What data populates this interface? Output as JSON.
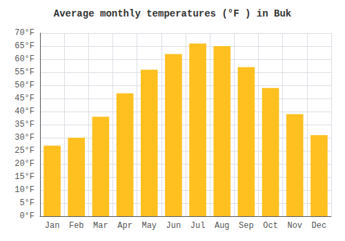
{
  "chart_data": {
    "type": "bar",
    "title": "Average monthly temperatures (°F ) in Buk",
    "categories": [
      "Jan",
      "Feb",
      "Mar",
      "Apr",
      "May",
      "Jun",
      "Jul",
      "Aug",
      "Sep",
      "Oct",
      "Nov",
      "Dec"
    ],
    "values": [
      27,
      30,
      38,
      47,
      56,
      62,
      66,
      65,
      57,
      49,
      39,
      31
    ],
    "color": "#FFC020",
    "ylim": [
      0,
      70
    ],
    "yticks": [
      {
        "value": 0,
        "label": "0°F"
      },
      {
        "value": 5,
        "label": "5°F"
      },
      {
        "value": 10,
        "label": "10°F"
      },
      {
        "value": 15,
        "label": "15°F"
      },
      {
        "value": 20,
        "label": "20°F"
      },
      {
        "value": 25,
        "label": "25°F"
      },
      {
        "value": 30,
        "label": "30°F"
      },
      {
        "value": 35,
        "label": "35°F"
      },
      {
        "value": 40,
        "label": "40°F"
      },
      {
        "value": 45,
        "label": "45°F"
      },
      {
        "value": 50,
        "label": "50°F"
      },
      {
        "value": 55,
        "label": "55°F"
      },
      {
        "value": 60,
        "label": "60°F"
      },
      {
        "value": 65,
        "label": "65°F"
      },
      {
        "value": 70,
        "label": "70°F"
      }
    ],
    "grid": true
  }
}
